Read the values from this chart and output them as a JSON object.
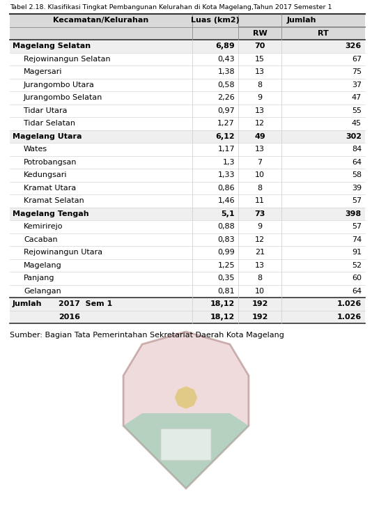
{
  "title": "Tabel 2.18. Klasifikasi Tingkat Pembangunan Kelurahan di Kota Magelang,Tahun 2017 Semester 1",
  "rows": [
    {
      "name": "Magelang Selatan",
      "bold": true,
      "indent": false,
      "luas": "6,89",
      "rw": "70",
      "rt": "326"
    },
    {
      "name": "Rejowinangun Selatan",
      "bold": false,
      "indent": true,
      "luas": "0,43",
      "rw": "15",
      "rt": "67"
    },
    {
      "name": "Magersari",
      "bold": false,
      "indent": true,
      "luas": "1,38",
      "rw": "13",
      "rt": "75"
    },
    {
      "name": "Jurangombo Utara",
      "bold": false,
      "indent": true,
      "luas": "0,58",
      "rw": "8",
      "rt": "37"
    },
    {
      "name": "Jurangombo Selatan",
      "bold": false,
      "indent": true,
      "luas": "2,26",
      "rw": "9",
      "rt": "47"
    },
    {
      "name": "Tidar Utara",
      "bold": false,
      "indent": true,
      "luas": "0,97",
      "rw": "13",
      "rt": "55"
    },
    {
      "name": "Tidar Selatan",
      "bold": false,
      "indent": true,
      "luas": "1,27",
      "rw": "12",
      "rt": "45"
    },
    {
      "name": "Magelang Utara",
      "bold": true,
      "indent": false,
      "luas": "6,12",
      "rw": "49",
      "rt": "302"
    },
    {
      "name": "Wates",
      "bold": false,
      "indent": true,
      "luas": "1,17",
      "rw": "13",
      "rt": "84"
    },
    {
      "name": "Potrobangsan",
      "bold": false,
      "indent": true,
      "luas": "1,3",
      "rw": "7",
      "rt": "64"
    },
    {
      "name": "Kedungsari",
      "bold": false,
      "indent": true,
      "luas": "1,33",
      "rw": "10",
      "rt": "58"
    },
    {
      "name": "Kramat Utara",
      "bold": false,
      "indent": true,
      "luas": "0,86",
      "rw": "8",
      "rt": "39"
    },
    {
      "name": "Kramat Selatan",
      "bold": false,
      "indent": true,
      "luas": "1,46",
      "rw": "11",
      "rt": "57"
    },
    {
      "name": "Magelang Tengah",
      "bold": true,
      "indent": false,
      "luas": "5,1",
      "rw": "73",
      "rt": "398"
    },
    {
      "name": "Kemirirejo",
      "bold": false,
      "indent": true,
      "luas": "0,88",
      "rw": "9",
      "rt": "57"
    },
    {
      "name": "Cacaban",
      "bold": false,
      "indent": true,
      "luas": "0,83",
      "rw": "12",
      "rt": "74"
    },
    {
      "name": "Rejowinangun Utara",
      "bold": false,
      "indent": true,
      "luas": "0,99",
      "rw": "21",
      "rt": "91"
    },
    {
      "name": "Magelang",
      "bold": false,
      "indent": true,
      "luas": "1,25",
      "rw": "13",
      "rt": "52"
    },
    {
      "name": "Panjang",
      "bold": false,
      "indent": true,
      "luas": "0,35",
      "rw": "8",
      "rt": "60"
    },
    {
      "name": "Gelangan",
      "bold": false,
      "indent": true,
      "luas": "0,81",
      "rw": "10",
      "rt": "64"
    }
  ],
  "totals": [
    {
      "label": "Jumlah",
      "year": "2017  Sem 1",
      "luas": "18,12",
      "rw": "192",
      "rt": "1.026"
    },
    {
      "label": "",
      "year": "2016",
      "luas": "18,12",
      "rw": "192",
      "rt": "1.026"
    }
  ],
  "source": "Sumber: Bagian Tata Pemerintahan Sekretariat Daerah Kota Magelang",
  "fig_width": 5.34,
  "fig_height": 7.29,
  "dpi": 100
}
